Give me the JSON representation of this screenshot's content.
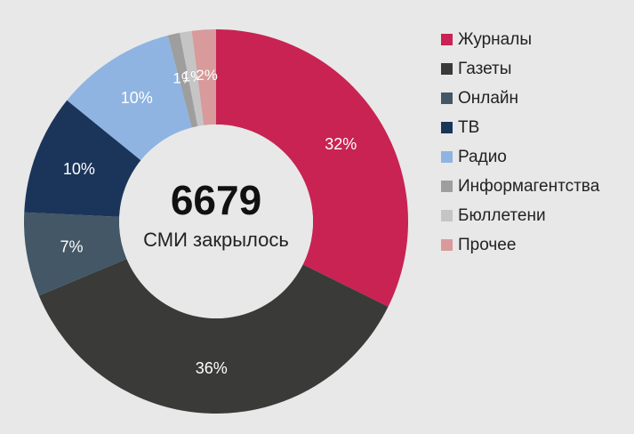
{
  "chart_data": {
    "type": "pie",
    "categories": [
      "Журналы",
      "Газеты",
      "Онлайн",
      "ТВ",
      "Радио",
      "Информагентства",
      "Бюллетени",
      "Прочее"
    ],
    "values": [
      32,
      36,
      7,
      10,
      10,
      1,
      1,
      2
    ],
    "labels": [
      "32%",
      "36%",
      "7%",
      "10%",
      "10%",
      "1%",
      "1%",
      "2%"
    ],
    "colors": [
      "#c82353",
      "#3a3a38",
      "#435766",
      "#1b355a",
      "#8fb4e2",
      "#9e9e9e",
      "#c5c5c5",
      "#d89a9a"
    ],
    "center_value": "6679",
    "center_caption": "СМИ закрылось",
    "legend_position": "right"
  }
}
